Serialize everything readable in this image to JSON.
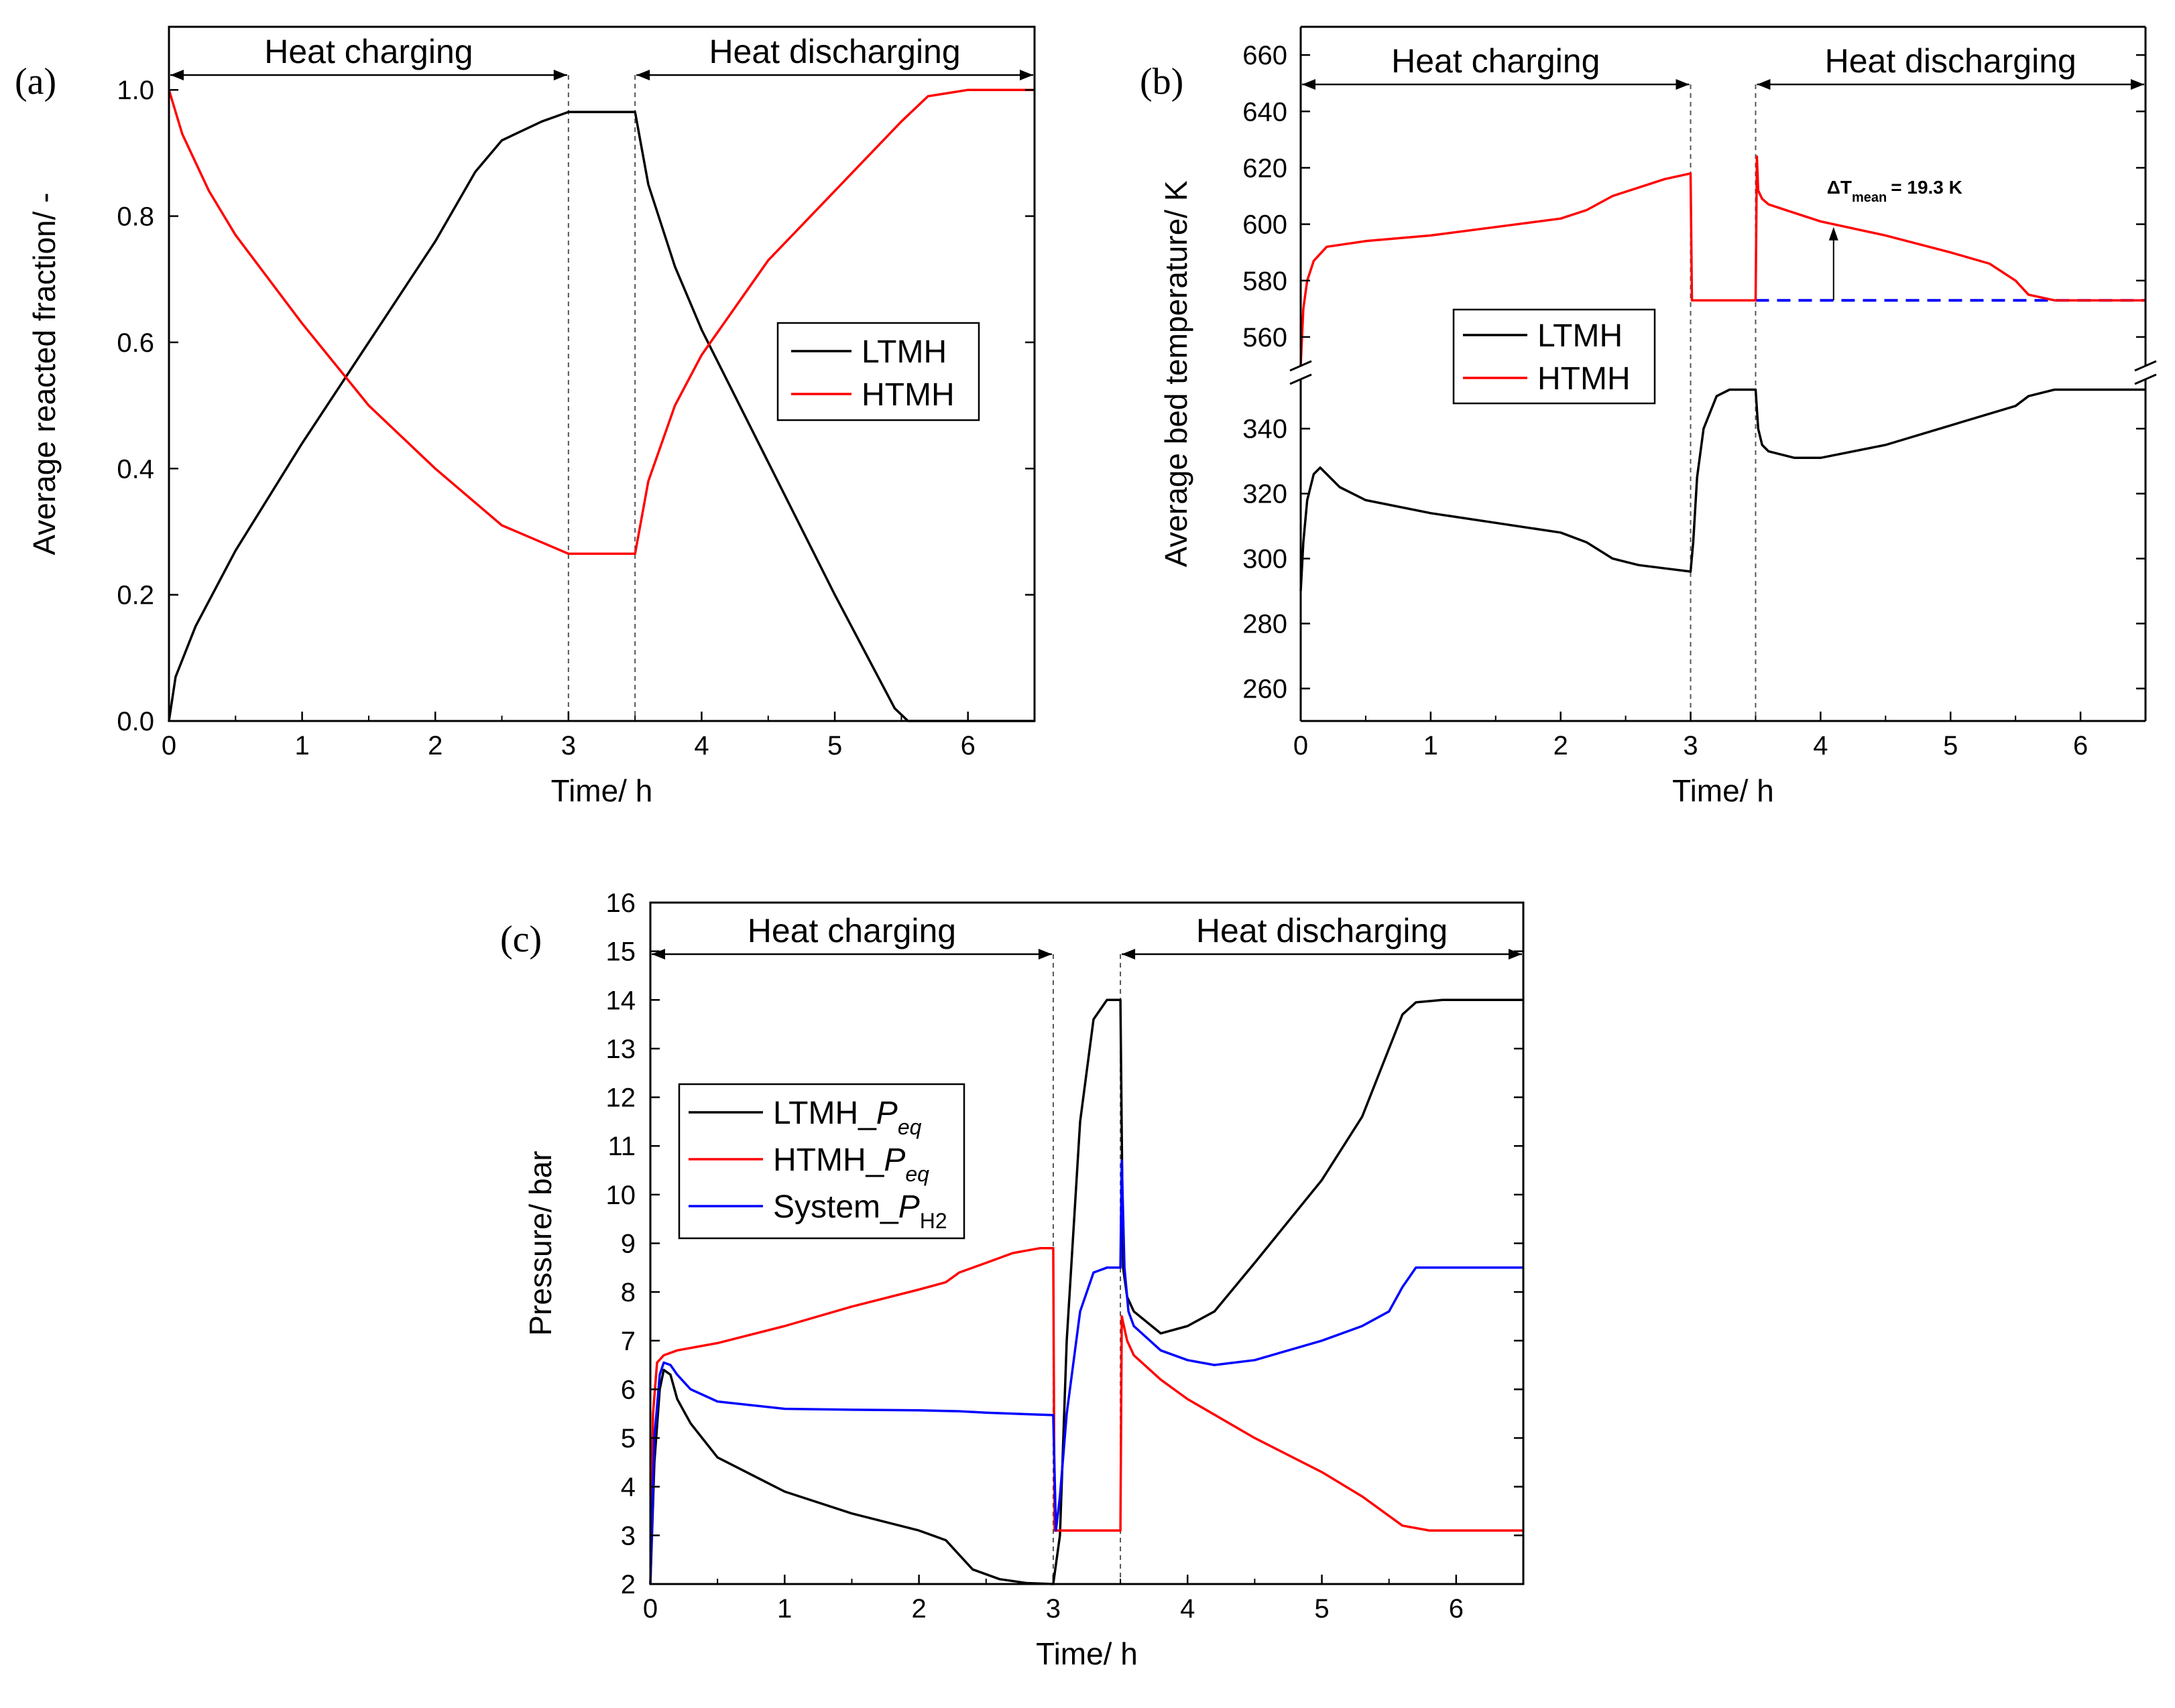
{
  "chart_data": [
    {
      "panel": "(a)",
      "type": "line",
      "xlabel": "Time/ h",
      "ylabel": "Average reacted fraction/ -",
      "xlim": [
        0,
        6.5
      ],
      "ylim": [
        0,
        1.1
      ],
      "xticks": [
        0,
        1,
        2,
        3,
        4,
        5,
        6
      ],
      "xtick_labels": [
        "0",
        "1",
        "2",
        "3",
        "4",
        "5",
        "6"
      ],
      "yticks": [
        0,
        0.2,
        0.4,
        0.6,
        0.8,
        1.0
      ],
      "ytick_labels": [
        "0.0",
        "0.2",
        "0.4",
        "0.6",
        "0.8",
        "1.0"
      ],
      "phases": [
        {
          "label": "Heat charging",
          "from": 0,
          "to": 3
        },
        {
          "label": "Heat discharging",
          "from": 3.5,
          "to": 6.5
        }
      ],
      "vlines": [
        3,
        3.5
      ],
      "legend_position": "center-right",
      "series": [
        {
          "name": "LTMH",
          "color": "#000000",
          "x": [
            0,
            0.05,
            0.2,
            0.5,
            1.0,
            1.5,
            2.0,
            2.3,
            2.5,
            2.8,
            3.0,
            3.5,
            3.6,
            3.8,
            4.0,
            4.5,
            5.0,
            5.3,
            5.45,
            5.55,
            6.5
          ],
          "y": [
            0,
            0.07,
            0.15,
            0.27,
            0.44,
            0.6,
            0.76,
            0.87,
            0.92,
            0.95,
            0.965,
            0.965,
            0.85,
            0.72,
            0.62,
            0.41,
            0.2,
            0.08,
            0.02,
            0,
            0
          ]
        },
        {
          "name": "HTMH",
          "color": "#ff0000",
          "x": [
            0,
            0.1,
            0.3,
            0.5,
            1.0,
            1.5,
            2.0,
            2.5,
            3.0,
            3.5,
            3.6,
            3.8,
            4.0,
            4.5,
            5.0,
            5.5,
            5.7,
            6.0,
            6.5
          ],
          "y": [
            1.0,
            0.93,
            0.84,
            0.77,
            0.63,
            0.5,
            0.4,
            0.31,
            0.265,
            0.265,
            0.38,
            0.5,
            0.58,
            0.73,
            0.84,
            0.95,
            0.99,
            1.0,
            1.0
          ]
        }
      ]
    },
    {
      "panel": "(b)",
      "type": "line",
      "xlabel": "Time/ h",
      "ylabel": "Average bed temperature/ K",
      "xlim": [
        0,
        6.5
      ],
      "broken_axis": true,
      "lower_ylim": [
        250,
        355
      ],
      "upper_ylim": [
        550,
        670
      ],
      "lower_yticks": [
        260,
        280,
        300,
        320,
        340
      ],
      "upper_yticks": [
        560,
        580,
        600,
        620,
        640,
        660
      ],
      "xticks": [
        0,
        1,
        2,
        3,
        4,
        5,
        6
      ],
      "xtick_labels": [
        "0",
        "1",
        "2",
        "3",
        "4",
        "5",
        "6"
      ],
      "phases": [
        {
          "label": "Heat charging",
          "from": 0,
          "to": 3
        },
        {
          "label": "Heat discharging",
          "from": 3.5,
          "to": 6.5
        }
      ],
      "vlines": [
        3,
        3.5
      ],
      "legend_position": "center-left",
      "annotation": {
        "prefix": "ΔT",
        "subscript": "mean",
        "suffix": "= 19.3 K",
        "x": 4.1,
        "y_from": 573,
        "y_to": 599
      },
      "reference_line": {
        "y": 573,
        "from": 3.5,
        "to": 6.5,
        "color": "#0000ff",
        "style": "dashed"
      },
      "series": [
        {
          "name": "LTMH",
          "color": "#000000",
          "axis": "lower",
          "x": [
            0,
            0.02,
            0.05,
            0.1,
            0.15,
            0.3,
            0.5,
            1.0,
            1.5,
            2.0,
            2.2,
            2.4,
            2.6,
            2.8,
            3.0,
            3.02,
            3.05,
            3.1,
            3.2,
            3.3,
            3.4,
            3.5,
            3.52,
            3.55,
            3.6,
            3.8,
            4.0,
            4.5,
            5.0,
            5.5,
            5.6,
            5.8,
            6.0,
            6.5
          ],
          "y": [
            290,
            305,
            318,
            326,
            328,
            322,
            318,
            314,
            311,
            308,
            305,
            300,
            298,
            297,
            296,
            305,
            325,
            340,
            350,
            352,
            352,
            352,
            340,
            335,
            333,
            331,
            331,
            335,
            341,
            347,
            350,
            352,
            352,
            352
          ]
        },
        {
          "name": "HTMH",
          "color": "#ff0000",
          "axis": "upper",
          "x": [
            0,
            0.02,
            0.05,
            0.1,
            0.2,
            0.5,
            1.0,
            1.5,
            2.0,
            2.2,
            2.4,
            2.6,
            2.8,
            3.0,
            3.01,
            3.5,
            3.51,
            3.52,
            3.55,
            3.6,
            3.8,
            4.0,
            4.5,
            5.0,
            5.3,
            5.5,
            5.6,
            5.8,
            6.0,
            6.5
          ],
          "y": [
            550,
            570,
            580,
            587,
            592,
            594,
            596,
            599,
            602,
            605,
            610,
            613,
            616,
            618,
            573,
            573,
            624,
            612,
            609,
            607,
            604,
            601,
            596,
            590,
            586,
            580,
            575,
            573,
            573,
            573
          ]
        }
      ]
    },
    {
      "panel": "(c)",
      "type": "line",
      "xlabel": "Time/ h",
      "ylabel": "Pressure/ bar",
      "xlim": [
        0,
        6.5
      ],
      "ylim": [
        2,
        16
      ],
      "xticks": [
        0,
        1,
        2,
        3,
        4,
        5,
        6
      ],
      "xtick_labels": [
        "0",
        "1",
        "2",
        "3",
        "4",
        "5",
        "6"
      ],
      "yticks": [
        2,
        3,
        4,
        5,
        6,
        7,
        8,
        9,
        10,
        11,
        12,
        13,
        14,
        15,
        16
      ],
      "ytick_labels": [
        "2",
        "3",
        "4",
        "5",
        "6",
        "7",
        "8",
        "9",
        "10",
        "11",
        "12",
        "13",
        "14",
        "15",
        "16"
      ],
      "phases": [
        {
          "label": "Heat charging",
          "from": 0,
          "to": 3
        },
        {
          "label": "Heat discharging",
          "from": 3.5,
          "to": 6.5
        }
      ],
      "vlines": [
        3,
        3.5
      ],
      "legend_position": "left",
      "series": [
        {
          "name": "LTMH_Peq",
          "legend_main": "LTMH_",
          "legend_italic": "P",
          "legend_sub": "eq",
          "color": "#000000",
          "x": [
            0,
            0.03,
            0.07,
            0.1,
            0.15,
            0.2,
            0.3,
            0.5,
            1.0,
            1.5,
            2.0,
            2.2,
            2.3,
            2.4,
            2.6,
            2.8,
            3.0,
            3.05,
            3.1,
            3.2,
            3.3,
            3.4,
            3.5,
            3.52,
            3.55,
            3.6,
            3.8,
            4.0,
            4.2,
            4.5,
            5.0,
            5.3,
            5.5,
            5.6,
            5.7,
            5.9,
            6.5
          ],
          "y": [
            2,
            4.5,
            6.0,
            6.4,
            6.3,
            5.8,
            5.3,
            4.6,
            3.9,
            3.45,
            3.1,
            2.9,
            2.6,
            2.3,
            2.1,
            2.02,
            2.0,
            3.0,
            7.0,
            11.5,
            13.6,
            14.0,
            14.0,
            8.5,
            7.9,
            7.6,
            7.15,
            7.3,
            7.6,
            8.6,
            10.3,
            11.6,
            13.0,
            13.7,
            13.95,
            14.0,
            14.0
          ]
        },
        {
          "name": "HTMH_Peq",
          "legend_main": "HTMH_",
          "legend_italic": "P",
          "legend_sub": "eq",
          "color": "#ff0000",
          "x": [
            0,
            0.02,
            0.05,
            0.1,
            0.2,
            0.5,
            1.0,
            1.5,
            2.0,
            2.2,
            2.3,
            2.5,
            2.7,
            2.9,
            3.0,
            3.01,
            3.5,
            3.51,
            3.55,
            3.6,
            3.8,
            4.0,
            4.5,
            5.0,
            5.3,
            5.5,
            5.6,
            5.8,
            6.0,
            6.5
          ],
          "y": [
            2,
            5.5,
            6.55,
            6.7,
            6.8,
            6.95,
            7.3,
            7.7,
            8.05,
            8.2,
            8.4,
            8.6,
            8.8,
            8.9,
            8.9,
            3.1,
            3.1,
            7.5,
            7.0,
            6.7,
            6.2,
            5.8,
            5.0,
            4.3,
            3.8,
            3.4,
            3.2,
            3.1,
            3.1,
            3.1
          ]
        },
        {
          "name": "System_PH2",
          "legend_main": "System_",
          "legend_italic": "P",
          "legend_sub": "H2",
          "color": "#0000ff",
          "x": [
            0,
            0.03,
            0.07,
            0.1,
            0.15,
            0.2,
            0.3,
            0.5,
            1.0,
            1.5,
            2.0,
            2.3,
            2.5,
            3.0,
            3.02,
            3.05,
            3.1,
            3.2,
            3.3,
            3.4,
            3.5,
            3.51,
            3.53,
            3.56,
            3.6,
            3.8,
            4.0,
            4.2,
            4.5,
            5.0,
            5.3,
            5.5,
            5.6,
            5.7,
            6.0,
            6.5
          ],
          "y": [
            2,
            5.0,
            6.3,
            6.55,
            6.5,
            6.3,
            6.0,
            5.75,
            5.6,
            5.58,
            5.57,
            5.55,
            5.52,
            5.47,
            3.1,
            3.8,
            5.5,
            7.6,
            8.4,
            8.5,
            8.5,
            10.7,
            8.5,
            7.6,
            7.3,
            6.8,
            6.6,
            6.5,
            6.6,
            7.0,
            7.3,
            7.6,
            8.1,
            8.5,
            8.5,
            8.5
          ]
        }
      ]
    }
  ]
}
